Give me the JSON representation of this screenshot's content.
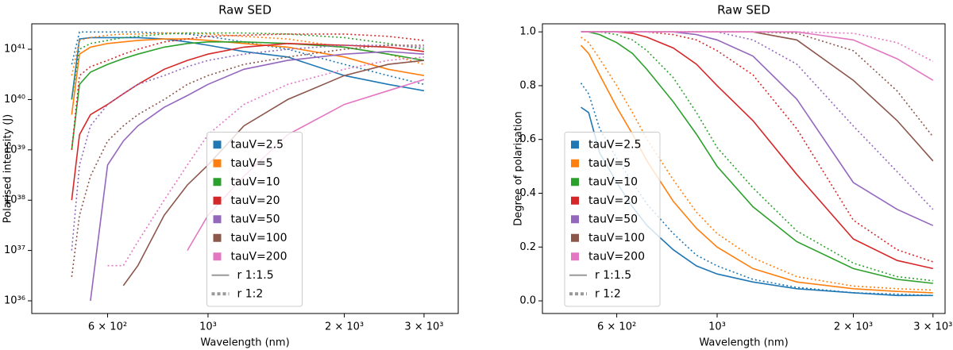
{
  "chart_data": [
    {
      "type": "line",
      "title": "Raw SED",
      "xlabel": "Wavelength (nm)",
      "ylabel": "Polarised intensity (J)",
      "xscale": "log",
      "yscale": "log",
      "xlim": [
        408,
        3570
      ],
      "ylim": [
        5.6e+35,
        3.2e+41
      ],
      "xticks": [
        {
          "value": 600,
          "label": "6 × 10²"
        },
        {
          "value": 1000,
          "label": "10³"
        },
        {
          "value": 2000,
          "label": "2 × 10³"
        },
        {
          "value": 3000,
          "label": "3 × 10³"
        }
      ],
      "yticks": [
        {
          "value": 1e+36,
          "label": "10³⁶"
        },
        {
          "value": 1e+37,
          "label": "10³⁷"
        },
        {
          "value": 1e+38,
          "label": "10³⁸"
        },
        {
          "value": 1e+39,
          "label": "10³⁹"
        },
        {
          "value": 1e+40,
          "label": "10⁴⁰"
        },
        {
          "value": 1e+41,
          "label": "10⁴¹"
        }
      ],
      "legend": "lower center",
      "x": [
        500,
        520,
        550,
        600,
        650,
        700,
        800,
        900,
        1000,
        1200,
        1500,
        2000,
        2500,
        3000
      ],
      "styles": [
        {
          "name": "r 1:1.5",
          "dash": "solid",
          "color": "#999999"
        },
        {
          "name": "r 1:2",
          "dash": "dotted",
          "color": "#999999"
        }
      ],
      "series": [
        {
          "name": "tauV=2.5",
          "color": "#1f77b4",
          "values": [
            [
              1e+40,
              1.6e+41,
              1.7e+41,
              1.7e+41,
              1.7e+41,
              1.7e+41,
              1.6e+41,
              1.4e+41,
              1.2e+41,
              9e+40,
              7e+40,
              3e+40,
              2e+40,
              1.5e+40
            ],
            [
              5e+40,
              2.2e+41,
              2.2e+41,
              2.2e+41,
              2.2e+41,
              2.2e+41,
              2.1e+41,
              2e+41,
              1.8e+41,
              1.4e+41,
              1e+41,
              5e+40,
              3e+40,
              2e+40
            ]
          ]
        },
        {
          "name": "tauV=5",
          "color": "#ff7f0e",
          "values": [
            [
              5e+39,
              8e+40,
              1.1e+41,
              1.3e+41,
              1.4e+41,
              1.5e+41,
              1.6e+41,
              1.6e+41,
              1.5e+41,
              1.3e+41,
              1.1e+41,
              7e+40,
              4e+40,
              3e+40
            ],
            [
              3e+40,
              1.5e+41,
              1.7e+41,
              1.9e+41,
              2e+41,
              2e+41,
              2.1e+41,
              2.1e+41,
              2e+41,
              1.8e+41,
              1.6e+41,
              1.1e+41,
              8e+40,
              5e+40
            ]
          ]
        },
        {
          "name": "tauV=10",
          "color": "#2ca02c",
          "values": [
            [
              1e+39,
              2e+40,
              3.5e+40,
              5e+40,
              6.5e+40,
              8e+40,
              1.1e+41,
              1.3e+41,
              1.4e+41,
              1.4e+41,
              1.3e+41,
              1.1e+41,
              8e+40,
              6e+40
            ],
            [
              1e+40,
              1e+41,
              1.3e+41,
              1.5e+41,
              1.7e+41,
              1.8e+41,
              2e+41,
              2.1e+41,
              2.1e+41,
              2.1e+41,
              2e+41,
              1.7e+41,
              1.3e+41,
              1e+41
            ]
          ]
        },
        {
          "name": "tauV=20",
          "color": "#d62728",
          "values": [
            [
              1e+38,
              2e+39,
              5e+39,
              8e+39,
              1.3e+40,
              2e+40,
              4e+40,
              6e+40,
              8e+40,
              1.1e+41,
              1.3e+41,
              1.2e+41,
              1.1e+41,
              9e+40
            ],
            [
              1e+39,
              3e+40,
              4.5e+40,
              6e+40,
              8e+40,
              1e+41,
              1.4e+41,
              1.6e+41,
              1.8e+41,
              1.9e+41,
              2e+41,
              2e+41,
              1.8e+41,
              1.5e+41
            ]
          ]
        },
        {
          "name": "tauV=50",
          "color": "#9467bd",
          "values": [
            [
              null,
              null,
              1e+36,
              5e+38,
              1.5e+39,
              3e+39,
              7e+39,
              1.2e+40,
              2e+40,
              4e+40,
              6e+40,
              8e+40,
              9e+40,
              8e+40
            ],
            [
              1e+37,
              5e+38,
              3e+39,
              8e+39,
              1.3e+40,
              2e+40,
              3e+40,
              4.5e+40,
              6e+40,
              8e+40,
              1e+41,
              1.2e+41,
              1.2e+41,
              1.1e+41
            ]
          ]
        },
        {
          "name": "tauV=100",
          "color": "#8c564b",
          "values": [
            [
              null,
              null,
              null,
              null,
              2e+36,
              5e+36,
              5e+37,
              2e+38,
              5e+38,
              3e+39,
              1e+40,
              3e+40,
              5e+40,
              6e+40
            ],
            [
              3e+36,
              5e+37,
              3e+38,
              1.5e+39,
              3e+39,
              5e+39,
              1e+40,
              2e+40,
              3e+40,
              5e+40,
              7e+40,
              1e+41,
              1.2e+41,
              1.2e+41
            ]
          ]
        },
        {
          "name": "tauV=200",
          "color": "#e377c2",
          "values": [
            [
              null,
              null,
              null,
              null,
              null,
              null,
              null,
              1e+37,
              5e+37,
              3e+38,
              2e+39,
              8e+39,
              1.5e+40,
              2.5e+40
            ],
            [
              null,
              null,
              null,
              5e+36,
              5e+36,
              1.5e+37,
              1e+38,
              5e+38,
              2e+39,
              8e+39,
              2e+40,
              4e+40,
              6e+40,
              7e+40
            ]
          ]
        }
      ]
    },
    {
      "type": "line",
      "title": "Raw SED",
      "xlabel": "Wavelength (nm)",
      "ylabel": "Degree of polarisation",
      "xscale": "log",
      "yscale": "linear",
      "xlim": [
        411,
        3190
      ],
      "ylim": [
        -0.047,
        1.03
      ],
      "xticks": [
        {
          "value": 600,
          "label": "6 × 10²"
        },
        {
          "value": 1000,
          "label": "10³"
        },
        {
          "value": 2000,
          "label": "2 × 10³"
        },
        {
          "value": 3000,
          "label": "3 × 10³"
        }
      ],
      "yticks": [
        {
          "value": 0,
          "label": "0.0"
        },
        {
          "value": 0.2,
          "label": "0.2"
        },
        {
          "value": 0.4,
          "label": "0.4"
        },
        {
          "value": 0.6,
          "label": "0.6"
        },
        {
          "value": 0.8,
          "label": "0.8"
        },
        {
          "value": 1,
          "label": "1.0"
        }
      ],
      "legend": "lower left",
      "x": [
        500,
        520,
        550,
        600,
        650,
        700,
        800,
        900,
        1000,
        1200,
        1500,
        2000,
        2500,
        3000
      ],
      "styles": [
        {
          "name": "r 1:1.5",
          "dash": "solid",
          "color": "#999999"
        },
        {
          "name": "r 1:2",
          "dash": "dotted",
          "color": "#999999"
        }
      ],
      "series": [
        {
          "name": "tauV=2.5",
          "color": "#1f77b4",
          "values": [
            [
              0.72,
              0.7,
              0.55,
              0.44,
              0.35,
              0.28,
              0.19,
              0.13,
              0.1,
              0.07,
              0.045,
              0.03,
              0.02,
              0.02
            ],
            [
              0.81,
              0.77,
              0.64,
              0.53,
              0.44,
              0.36,
              0.25,
              0.17,
              0.13,
              0.08,
              0.05,
              0.03,
              0.025,
              0.02
            ]
          ]
        },
        {
          "name": "tauV=5",
          "color": "#ff7f0e",
          "values": [
            [
              0.95,
              0.92,
              0.84,
              0.72,
              0.62,
              0.52,
              0.37,
              0.27,
              0.2,
              0.12,
              0.07,
              0.045,
              0.035,
              0.03
            ],
            [
              0.98,
              0.96,
              0.9,
              0.8,
              0.7,
              0.6,
              0.45,
              0.33,
              0.25,
              0.16,
              0.09,
              0.055,
              0.045,
              0.04
            ]
          ]
        },
        {
          "name": "tauV=10",
          "color": "#2ca02c",
          "values": [
            [
              1,
              1,
              0.99,
              0.96,
              0.92,
              0.86,
              0.74,
              0.62,
              0.5,
              0.35,
              0.22,
              0.12,
              0.08,
              0.065
            ],
            [
              1,
              1,
              1,
              0.99,
              0.97,
              0.93,
              0.83,
              0.7,
              0.57,
              0.42,
              0.26,
              0.14,
              0.09,
              0.075
            ]
          ]
        },
        {
          "name": "tauV=20",
          "color": "#d62728",
          "values": [
            [
              1,
              1,
              1,
              1,
              0.995,
              0.98,
              0.94,
              0.88,
              0.8,
              0.67,
              0.47,
              0.23,
              0.15,
              0.12
            ],
            [
              1,
              1,
              1,
              1,
              1,
              1,
              0.99,
              0.97,
              0.93,
              0.84,
              0.64,
              0.3,
              0.19,
              0.145
            ]
          ]
        },
        {
          "name": "tauV=50",
          "color": "#9467bd",
          "values": [
            [
              1,
              1,
              1,
              1,
              1,
              1,
              1,
              0.99,
              0.97,
              0.91,
              0.75,
              0.44,
              0.34,
              0.28
            ],
            [
              1,
              1,
              1,
              1,
              1,
              1,
              1,
              1,
              1,
              0.97,
              0.88,
              0.65,
              0.48,
              0.34
            ]
          ]
        },
        {
          "name": "tauV=100",
          "color": "#8c564b",
          "values": [
            [
              1,
              1,
              1,
              1,
              1,
              1,
              1,
              1,
              1,
              1,
              0.97,
              0.82,
              0.67,
              0.52
            ],
            [
              1,
              1,
              1,
              1,
              1,
              1,
              1,
              1,
              1,
              1,
              0.995,
              0.93,
              0.78,
              0.61
            ]
          ]
        },
        {
          "name": "tauV=200",
          "color": "#e377c2",
          "values": [
            [
              1,
              1,
              1,
              1,
              1,
              1,
              1,
              1,
              1,
              1,
              1,
              0.97,
              0.9,
              0.82
            ],
            [
              1,
              1,
              1,
              1,
              1,
              1,
              1,
              1,
              1,
              1,
              1,
              0.995,
              0.96,
              0.89
            ]
          ]
        }
      ]
    }
  ]
}
